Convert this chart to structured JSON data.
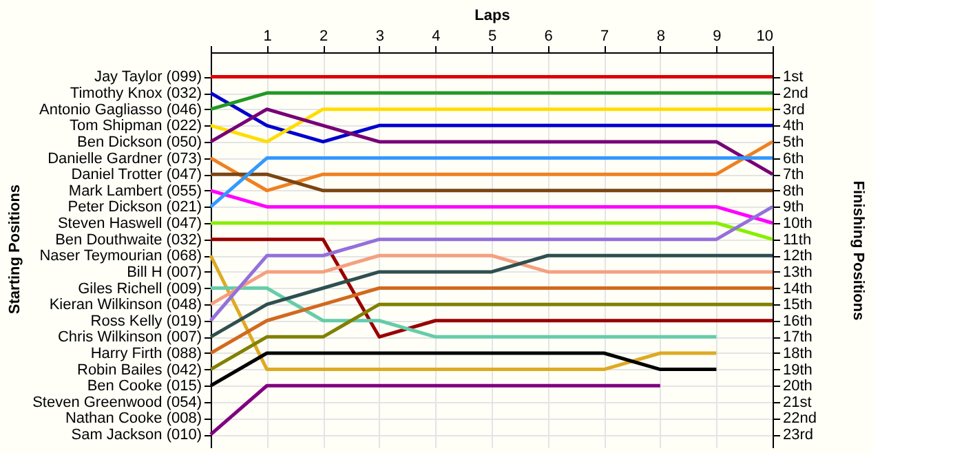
{
  "chart_data": {
    "type": "line",
    "xlabel": "Laps",
    "annotations": [
      "Starting Positions"
    ],
    "y2label": "Finishing Positions",
    "x": [
      0,
      1,
      2,
      3,
      4,
      5,
      6,
      7,
      8,
      9,
      10
    ],
    "xlim": [
      0,
      10
    ],
    "xticks": [
      {
        "value": 0,
        "label": null
      },
      1,
      2,
      3,
      4,
      5,
      6,
      7,
      8,
      9,
      10
    ],
    "y_categories": [
      "Jay Taylor (099)",
      "Timothy Knox (032)",
      "Antonio Gagliasso (046)",
      "Tom Shipman (022)",
      "Ben Dickson (050)",
      "Danielle Gardner (073)",
      "Daniel Trotter (047)",
      "Mark Lambert (055)",
      "Peter Dickson (021)",
      "Steven Haswell (047)",
      "Ben Douthwaite (032)",
      "Naser Teymourian (068)",
      "Bill H (007)",
      "Giles Richell (009)",
      "Kieran Wilkinson (048)",
      "Ross Kelly (019)",
      "Chris Wilkinson (007)",
      "Harry Firth (088)",
      "Robin Bailes (042)",
      "Ben Cooke (015)",
      "Steven Greenwood (054)",
      "Nathan Cooke (008)",
      "Sam Jackson (010)"
    ],
    "ylim": [
      23.8,
      -0.5
    ],
    "yticks": [
      {
        "value": 1,
        "label": "1st"
      },
      {
        "value": 2,
        "label": "2nd"
      },
      {
        "value": 3,
        "label": "3rd"
      },
      {
        "value": 4,
        "label": "4th"
      },
      {
        "value": 5,
        "label": "5th"
      },
      {
        "value": 6,
        "label": "6th"
      },
      {
        "value": 7,
        "label": "7th"
      },
      {
        "value": 8,
        "label": "8th"
      },
      {
        "value": 9,
        "label": "9th"
      },
      {
        "value": 10,
        "label": "10th"
      },
      {
        "value": 11,
        "label": "11th"
      },
      {
        "value": 12,
        "label": "12th"
      },
      {
        "value": 13,
        "label": "13th"
      },
      {
        "value": 14,
        "label": "14th"
      },
      {
        "value": 15,
        "label": "15th"
      },
      {
        "value": 16,
        "label": "16th"
      },
      {
        "value": 17,
        "label": "17th"
      },
      {
        "value": 18,
        "label": "18th"
      },
      {
        "value": 19,
        "label": "19th"
      },
      {
        "value": 20,
        "label": "20th"
      },
      {
        "value": 21,
        "label": "21st"
      },
      {
        "value": 22,
        "label": "22nd"
      },
      {
        "value": 23,
        "label": "23rd"
      }
    ],
    "grid": true,
    "legend": false,
    "marker": "none",
    "line_style": "solid",
    "series": [
      {
        "color": "#dd0000",
        "values": [
          1,
          1,
          1,
          1,
          1,
          1,
          1,
          1,
          1,
          1,
          1
        ]
      },
      {
        "color": "#0000cc",
        "values": [
          2,
          4,
          5,
          4,
          4,
          4,
          4,
          4,
          4,
          4,
          4
        ]
      },
      {
        "color": "#229922",
        "values": [
          3,
          2,
          2,
          2,
          2,
          2,
          2,
          2,
          2,
          2,
          2
        ]
      },
      {
        "color": "#ffdd00",
        "values": [
          4,
          5,
          3,
          3,
          3,
          3,
          3,
          3,
          3,
          3,
          3
        ]
      },
      {
        "color": "#770077",
        "values": [
          5,
          3,
          4,
          5,
          5,
          5,
          5,
          5,
          5,
          5,
          7
        ]
      },
      {
        "color": "#f08020",
        "values": [
          6,
          8,
          7,
          7,
          7,
          7,
          7,
          7,
          7,
          7,
          5
        ]
      },
      {
        "color": "#7b4513",
        "values": [
          7,
          7,
          8,
          8,
          8,
          8,
          8,
          8,
          8,
          8,
          8
        ]
      },
      {
        "color": "#ff00ff",
        "values": [
          8,
          9,
          9,
          9,
          9,
          9,
          9,
          9,
          9,
          9,
          10
        ]
      },
      {
        "color": "#3399ff",
        "values": [
          9,
          6,
          6,
          6,
          6,
          6,
          6,
          6,
          6,
          6,
          6
        ]
      },
      {
        "color": "#88ee00",
        "values": [
          10,
          10,
          10,
          10,
          10,
          10,
          10,
          10,
          10,
          10,
          11
        ]
      },
      {
        "color": "#990000",
        "values": [
          11,
          11,
          11,
          17,
          16,
          16,
          16,
          16,
          16,
          16,
          16
        ]
      },
      {
        "color": "#ddaa22",
        "values": [
          12,
          19,
          19,
          19,
          19,
          19,
          19,
          19,
          18,
          18,
          null
        ]
      },
      {
        "color": "#66ccaa",
        "values": [
          14,
          14,
          16,
          16,
          17,
          17,
          17,
          17,
          17,
          17,
          null
        ]
      },
      {
        "color": "#f4a080",
        "values": [
          15,
          13,
          13,
          12,
          12,
          12,
          13,
          13,
          13,
          13,
          13
        ]
      },
      {
        "color": "#9370db",
        "values": [
          16,
          12,
          12,
          11,
          11,
          11,
          11,
          11,
          11,
          11,
          9
        ]
      },
      {
        "color": "#2f4f4f",
        "values": [
          17,
          15,
          14,
          13,
          13,
          13,
          12,
          12,
          12,
          12,
          12
        ]
      },
      {
        "color": "#d2691e",
        "values": [
          18,
          16,
          15,
          14,
          14,
          14,
          14,
          14,
          14,
          14,
          14
        ]
      },
      {
        "color": "#808000",
        "values": [
          19,
          17,
          17,
          15,
          15,
          15,
          15,
          15,
          15,
          15,
          15
        ]
      },
      {
        "color": "#000000",
        "values": [
          20,
          18,
          18,
          18,
          18,
          18,
          18,
          18,
          19,
          19,
          null
        ]
      },
      {
        "color": "#800080",
        "values": [
          23,
          20,
          20,
          20,
          20,
          20,
          20,
          20,
          20,
          null,
          null
        ]
      }
    ]
  }
}
